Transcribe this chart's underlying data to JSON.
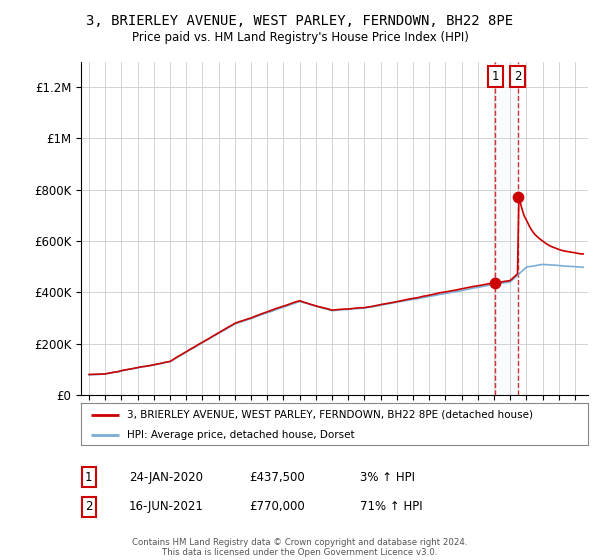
{
  "title": "3, BRIERLEY AVENUE, WEST PARLEY, FERNDOWN, BH22 8PE",
  "subtitle": "Price paid vs. HM Land Registry's House Price Index (HPI)",
  "legend_line1": "3, BRIERLEY AVENUE, WEST PARLEY, FERNDOWN, BH22 8PE (detached house)",
  "legend_line2": "HPI: Average price, detached house, Dorset",
  "footer": "Contains HM Land Registry data © Crown copyright and database right 2024.\nThis data is licensed under the Open Government Licence v3.0.",
  "line_color_red": "#cc0000",
  "line_color_blue": "#7aaed6",
  "shade_color": "#ddeeff",
  "ylim": [
    0,
    1300000
  ],
  "yticks": [
    0,
    200000,
    400000,
    600000,
    800000,
    1000000,
    1200000
  ],
  "ytick_labels": [
    "£0",
    "£200K",
    "£400K",
    "£600K",
    "£800K",
    "£1M",
    "£1.2M"
  ],
  "background_color": "#ffffff",
  "anno1_x": 2020.07,
  "anno1_y": 437500,
  "anno2_x": 2021.46,
  "anno2_y": 770000,
  "xmin": 1994.5,
  "xmax": 2025.8
}
